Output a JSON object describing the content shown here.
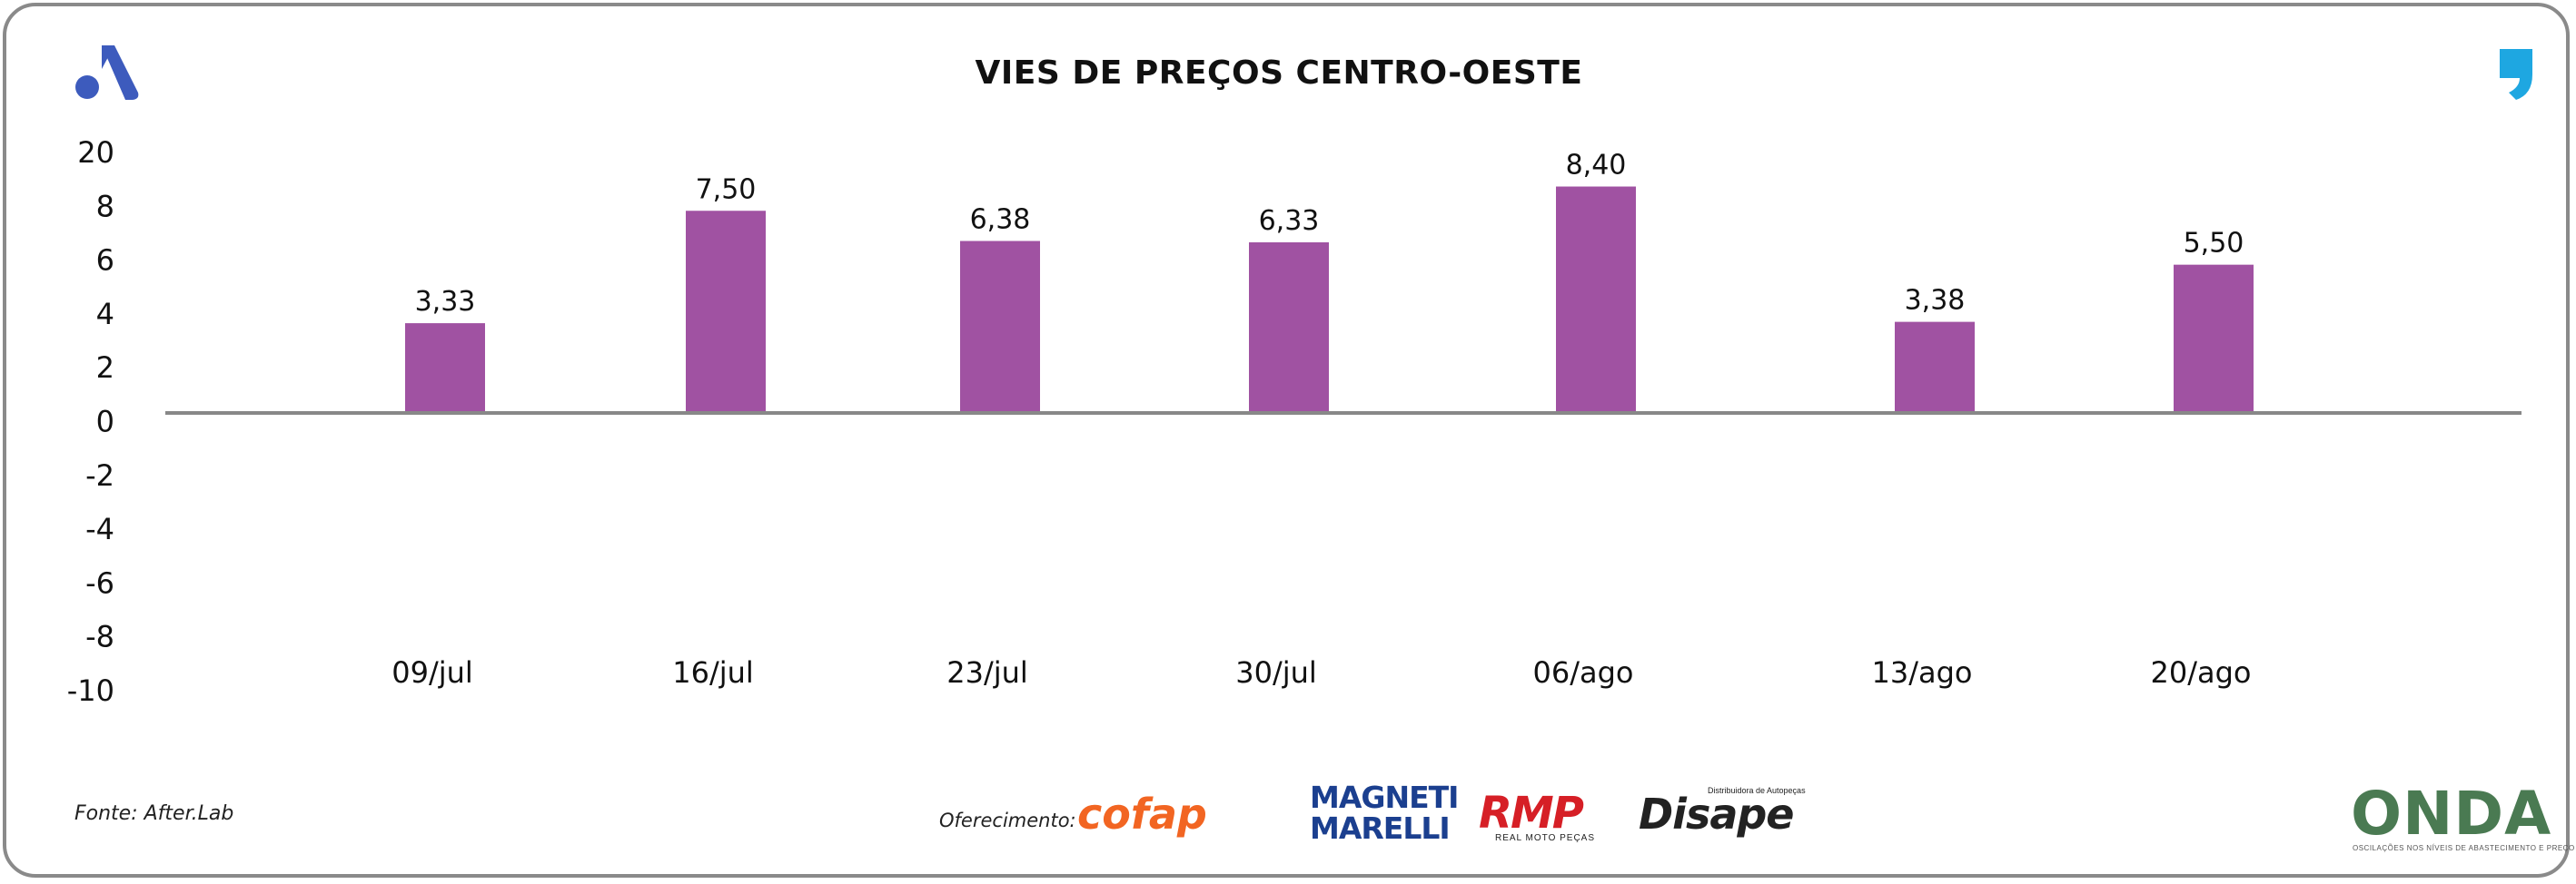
{
  "colors": {
    "bar": "#a052a2",
    "axis": "#888888",
    "frame": "#8a8a8a",
    "logo_left": "#3d5bbd",
    "logo_right": "#1ea7e1"
  },
  "header": {
    "title": "VIES DE PREÇOS CENTRO-OESTE"
  },
  "icons": {
    "left": "brand-a-icon",
    "right": "comma-quote-icon"
  },
  "chart_data": {
    "type": "bar",
    "title": "VIES DE PREÇOS CENTRO-OESTE",
    "categories": [
      "09/jul",
      "16/jul",
      "23/jul",
      "30/jul",
      "06/ago",
      "13/ago",
      "20/ago"
    ],
    "values": [
      3.33,
      7.5,
      6.38,
      6.33,
      8.4,
      3.38,
      5.5
    ],
    "value_labels": [
      "3,33",
      "7,50",
      "6,38",
      "6,33",
      "8,40",
      "3,38",
      "5,50"
    ],
    "y_ticks": [
      "20",
      "8",
      "6",
      "4",
      "2",
      "0",
      "-2",
      "-4",
      "-6",
      "-8",
      "-10"
    ],
    "xlabel": "",
    "ylabel": "",
    "grid": false,
    "legend": "none"
  },
  "footer": {
    "source": "Fonte: After.Lab",
    "offer_label": "Oferecimento:",
    "sponsors": [
      "cofap",
      "MAGNETI MARELLI",
      "RMP",
      "Disape"
    ],
    "rmp_tagline": "REAL MOTO PEÇAS",
    "disape_tagline": "Distribuidora de Autopeças",
    "brand": "ONDA",
    "brand_tagline": "OSCILAÇÕES NOS NÍVEIS DE ABASTECIMENTO E PREÇO"
  }
}
